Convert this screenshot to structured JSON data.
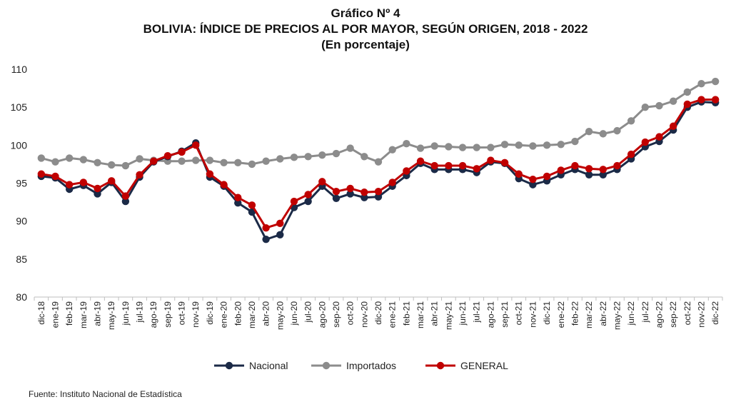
{
  "title": {
    "line1": "Gráfico Nº 4",
    "line2": "BOLIVIA: ÍNDICE DE PRECIOS AL POR MAYOR, SEGÚN ORIGEN, 2018 - 2022",
    "line3": "(En porcentaje)"
  },
  "source": "Fuente: Instituto Nacional de Estadística",
  "chart_data": {
    "type": "line",
    "ylim": [
      80,
      110
    ],
    "yticks": [
      80,
      85,
      90,
      95,
      100,
      105,
      110
    ],
    "grid": false,
    "legend_position": "bottom",
    "categories": [
      "dic-18",
      "ene-19",
      "feb-19",
      "mar-19",
      "abr-19",
      "may-19",
      "jun-19",
      "jul-19",
      "ago-19",
      "sep-19",
      "oct-19",
      "nov-19",
      "dic-19",
      "ene-20",
      "feb-20",
      "mar-20",
      "abr-20",
      "may-20",
      "jun-20",
      "jul-20",
      "ago-20",
      "sep-20",
      "oct-20",
      "nov-20",
      "dic-20",
      "ene-21",
      "feb-21",
      "mar-21",
      "abr-21",
      "may-21",
      "jun-21",
      "jul-21",
      "ago-21",
      "sep-21",
      "oct-21",
      "nov-21",
      "dic-21",
      "ene-22",
      "feb-22",
      "mar-22",
      "abr-22",
      "may-22",
      "jun-22",
      "jul-22",
      "ago-22",
      "sep-22",
      "oct-22",
      "nov-22",
      "dic-22"
    ],
    "series": [
      {
        "name": "Nacional",
        "color": "#1b2a47",
        "values": [
          95.9,
          95.7,
          94.2,
          94.7,
          93.6,
          95.1,
          92.6,
          95.8,
          97.8,
          98.5,
          99.2,
          100.3,
          95.8,
          94.6,
          92.4,
          91.2,
          87.6,
          88.2,
          91.8,
          92.6,
          94.6,
          93.0,
          93.6,
          93.1,
          93.2,
          94.6,
          96.0,
          97.6,
          96.8,
          96.8,
          96.8,
          96.4,
          97.8,
          97.6,
          95.6,
          94.8,
          95.3,
          96.1,
          96.8,
          96.1,
          96.1,
          96.8,
          98.2,
          99.8,
          100.5,
          102.0,
          105.0,
          105.7,
          105.6
        ]
      },
      {
        "name": "Importados",
        "color": "#8c8c8c",
        "values": [
          98.3,
          97.8,
          98.3,
          98.1,
          97.7,
          97.4,
          97.3,
          98.2,
          98.0,
          97.9,
          97.9,
          98.0,
          98.0,
          97.7,
          97.7,
          97.5,
          97.9,
          98.2,
          98.4,
          98.5,
          98.7,
          98.9,
          99.6,
          98.5,
          97.8,
          99.4,
          100.2,
          99.6,
          99.9,
          99.8,
          99.7,
          99.7,
          99.7,
          100.1,
          100.0,
          99.9,
          100.0,
          100.1,
          100.5,
          101.8,
          101.5,
          101.9,
          103.2,
          105.0,
          105.2,
          105.8,
          107.0,
          108.1,
          108.4
        ]
      },
      {
        "name": "GENERAL",
        "color": "#c00000",
        "values": [
          96.2,
          95.9,
          94.8,
          95.1,
          94.3,
          95.3,
          93.3,
          96.1,
          97.9,
          98.6,
          99.1,
          100.0,
          96.2,
          94.8,
          93.1,
          92.1,
          89.1,
          89.7,
          92.6,
          93.5,
          95.2,
          93.9,
          94.3,
          93.8,
          93.9,
          95.1,
          96.6,
          97.9,
          97.3,
          97.3,
          97.3,
          96.9,
          98.0,
          97.7,
          96.2,
          95.5,
          95.9,
          96.7,
          97.3,
          96.9,
          96.8,
          97.3,
          98.8,
          100.4,
          101.1,
          102.5,
          105.4,
          106.0,
          106.0
        ]
      }
    ]
  }
}
